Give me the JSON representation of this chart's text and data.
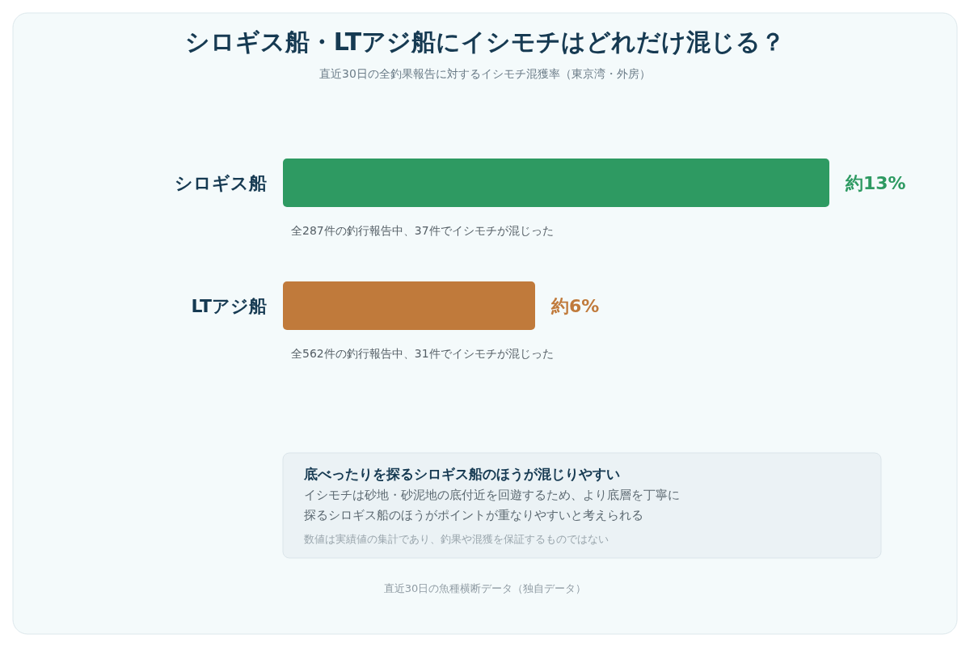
{
  "chart_data": {
    "type": "bar",
    "orientation": "horizontal",
    "title": "シロギス船・LTアジ船にイシモチはどれだけ混じる？",
    "subtitle": "直近30日の全釣果報告に対するイシモチ混獲率（東京湾・外房）",
    "categories": [
      "シロギス船",
      "LTアジ船"
    ],
    "values": [
      13,
      6
    ],
    "colors": [
      "#2e9a62",
      "#c07a3b"
    ],
    "value_labels": [
      "約13%",
      "約6%"
    ],
    "annotations": [
      "全287件の釣行報告中、37件でイシモチが混じった",
      "全562件の釣行報告中、31件でイシモチが混じった",
      "底べったりを探るシロギス船のほうが混じりやすい",
      "イシモチは砂地・砂泥地の底付近を回遊するため、より底層を丁寧に",
      "探るシロギス船のほうがポイントが重なりやすいと考えられる",
      "数値は実績値の集計であり、釣果や混獲を保証するものではない",
      "直近30日の魚種横断データ（独自データ）"
    ]
  }
}
